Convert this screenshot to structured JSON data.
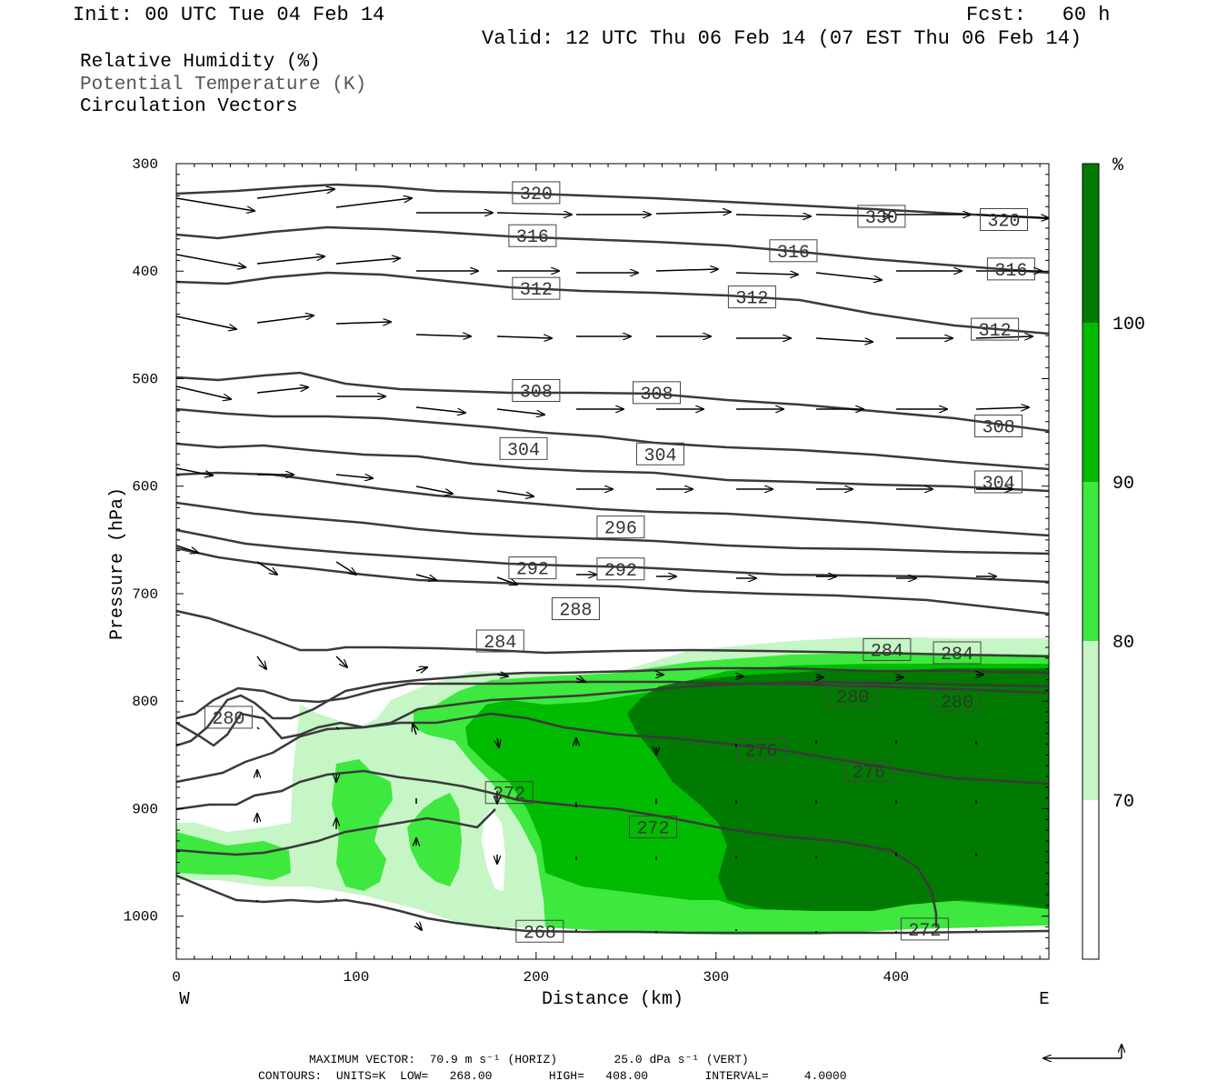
{
  "header": {
    "init": "Init: 00 UTC Tue 04 Feb 14",
    "fcst": "Fcst:   60 h",
    "valid": "Valid: 12 UTC Thu 06 Feb 14 (07 EST Thu 06 Feb 14)"
  },
  "legend": {
    "rh": "Relative Humidity (%)",
    "theta": "Potential Temperature (K)",
    "vectors": "Circulation Vectors"
  },
  "colors": {
    "rh70": "#c6f5c6",
    "rh80": "#3ee83e",
    "rh90": "#00bb00",
    "rh100": "#007a00",
    "contour": "#3a3a3a"
  },
  "chart_data": {
    "type": "cross-section",
    "xlabel": "Distance (km)",
    "ylabel": "Pressure (hPa)",
    "xlim": [
      0,
      485
    ],
    "ylim": [
      1040,
      300
    ],
    "x_ticks": [
      0,
      100,
      200,
      300,
      400
    ],
    "y_ticks": [
      300,
      400,
      500,
      600,
      700,
      800,
      900,
      1000
    ],
    "x_end_labels": {
      "left": "W",
      "right": "E"
    },
    "colorbar": {
      "unit": "%",
      "levels": [
        70,
        80,
        90,
        100
      ]
    },
    "contour_labels": [
      {
        "text": "320",
        "x": 200,
        "p": 327
      },
      {
        "text": "330",
        "x": 392,
        "p": 349
      },
      {
        "text": "320",
        "x": 460,
        "p": 352
      },
      {
        "text": "316",
        "x": 198,
        "p": 367
      },
      {
        "text": "316",
        "x": 343,
        "p": 381
      },
      {
        "text": "316",
        "x": 464,
        "p": 398
      },
      {
        "text": "312",
        "x": 200,
        "p": 416
      },
      {
        "text": "312",
        "x": 320,
        "p": 424
      },
      {
        "text": "312",
        "x": 455,
        "p": 454
      },
      {
        "text": "308",
        "x": 200,
        "p": 511
      },
      {
        "text": "308",
        "x": 267,
        "p": 513
      },
      {
        "text": "308",
        "x": 457,
        "p": 544
      },
      {
        "text": "304",
        "x": 193,
        "p": 565
      },
      {
        "text": "304",
        "x": 269,
        "p": 570
      },
      {
        "text": "304",
        "x": 457,
        "p": 596
      },
      {
        "text": "296",
        "x": 247,
        "p": 638
      },
      {
        "text": "292",
        "x": 198,
        "p": 676
      },
      {
        "text": "292",
        "x": 247,
        "p": 677
      },
      {
        "text": "288",
        "x": 222,
        "p": 714
      },
      {
        "text": "284",
        "x": 180,
        "p": 744
      },
      {
        "text": "284",
        "x": 395,
        "p": 752
      },
      {
        "text": "284",
        "x": 434,
        "p": 755
      },
      {
        "text": "280",
        "x": 29,
        "p": 815
      },
      {
        "text": "280",
        "x": 376,
        "p": 795
      },
      {
        "text": "280",
        "x": 434,
        "p": 800
      },
      {
        "text": "276",
        "x": 325,
        "p": 845
      },
      {
        "text": "276",
        "x": 385,
        "p": 865
      },
      {
        "text": "272",
        "x": 185,
        "p": 885
      },
      {
        "text": "272",
        "x": 265,
        "p": 917
      },
      {
        "text": "272",
        "x": 416,
        "p": 1012
      },
      {
        "text": "268",
        "x": 202,
        "p": 1014
      }
    ]
  },
  "footer": {
    "line1": "MAXIMUM VECTOR:  70.9 m s⁻¹ (HORIZ)        25.0 dPa s⁻¹ (VERT)",
    "line2": "CONTOURS:  UNITS=K  LOW=   268.00        HIGH=   408.00        INTERVAL=     4.0000"
  }
}
